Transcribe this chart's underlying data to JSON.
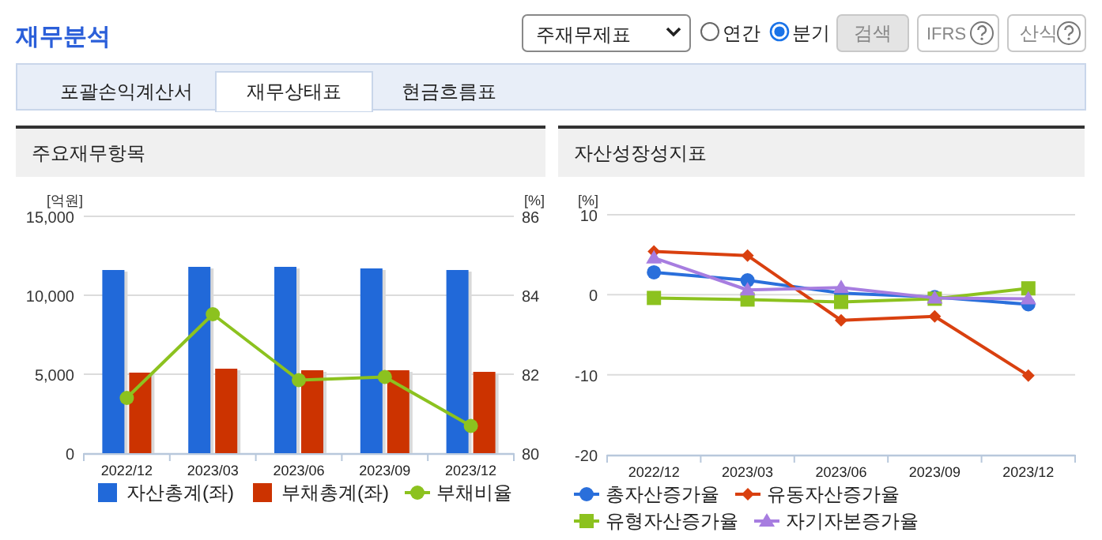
{
  "chart_data": [
    {
      "type": "other",
      "title": "재무분석",
      "annotations": [
        "주재무제표",
        "연간",
        "분기",
        "검색",
        "IFRS",
        "산식",
        "포괄손익계산서",
        "재무상태표",
        "현금흐름표"
      ]
    },
    {
      "type": "bar",
      "title": "주요재무항목",
      "ylabel": "[억원]",
      "y2label": "[%]",
      "categories": [
        "2022/12",
        "2023/03",
        "2023/06",
        "2023/09",
        "2023/12"
      ],
      "series": [
        {
          "name": "자산총계(좌)",
          "color": "#2169d9",
          "values": [
            11600,
            11800,
            11800,
            11700,
            11600
          ]
        },
        {
          "name": "부채총계(좌)",
          "color": "#cc3300",
          "values": [
            5100,
            5350,
            5250,
            5250,
            5150
          ]
        },
        {
          "name": "부채비율",
          "type": "line",
          "axis": "y2",
          "color": "#8cc21f",
          "marker": "circle",
          "values": [
            81.4,
            83.52,
            81.85,
            81.93,
            80.69
          ]
        }
      ],
      "ylim": [
        0,
        15000
      ],
      "yticks": [
        0,
        {
          "value": 5000,
          "label": "5,000"
        },
        {
          "value": 10000,
          "label": "10,000"
        },
        {
          "value": 15000,
          "label": "15,000"
        }
      ],
      "y2lim": [
        80,
        86
      ],
      "y2ticks": [
        80,
        82,
        84,
        86
      ],
      "grid": "y",
      "legend": "bottom"
    },
    {
      "type": "line",
      "title": "자산성장성지표",
      "ylabel": "[%]",
      "categories": [
        "2022/12",
        "2023/03",
        "2023/06",
        "2023/09",
        "2023/12"
      ],
      "series": [
        {
          "name": "총자산증가율",
          "color": "#2a6fdb",
          "marker": "circle",
          "values": [
            2.8,
            1.8,
            0.2,
            -0.3,
            -1.2
          ]
        },
        {
          "name": "유동자산증가율",
          "color": "#d9400f",
          "marker": "diamond",
          "values": [
            5.4,
            4.9,
            -3.2,
            -2.7,
            -10.1
          ]
        },
        {
          "name": "유형자산증가율",
          "color": "#8cc21f",
          "marker": "square",
          "values": [
            -0.4,
            -0.6,
            -0.9,
            -0.5,
            0.8
          ]
        },
        {
          "name": "자기자본증가율",
          "color": "#a77de0",
          "marker": "triangle",
          "values": [
            4.6,
            0.6,
            0.9,
            -0.4,
            -0.5
          ]
        }
      ],
      "ylim": [
        -20,
        10
      ],
      "yticks": [
        -20,
        -10,
        0,
        10
      ],
      "grid": "y",
      "legend": "bottom"
    }
  ]
}
